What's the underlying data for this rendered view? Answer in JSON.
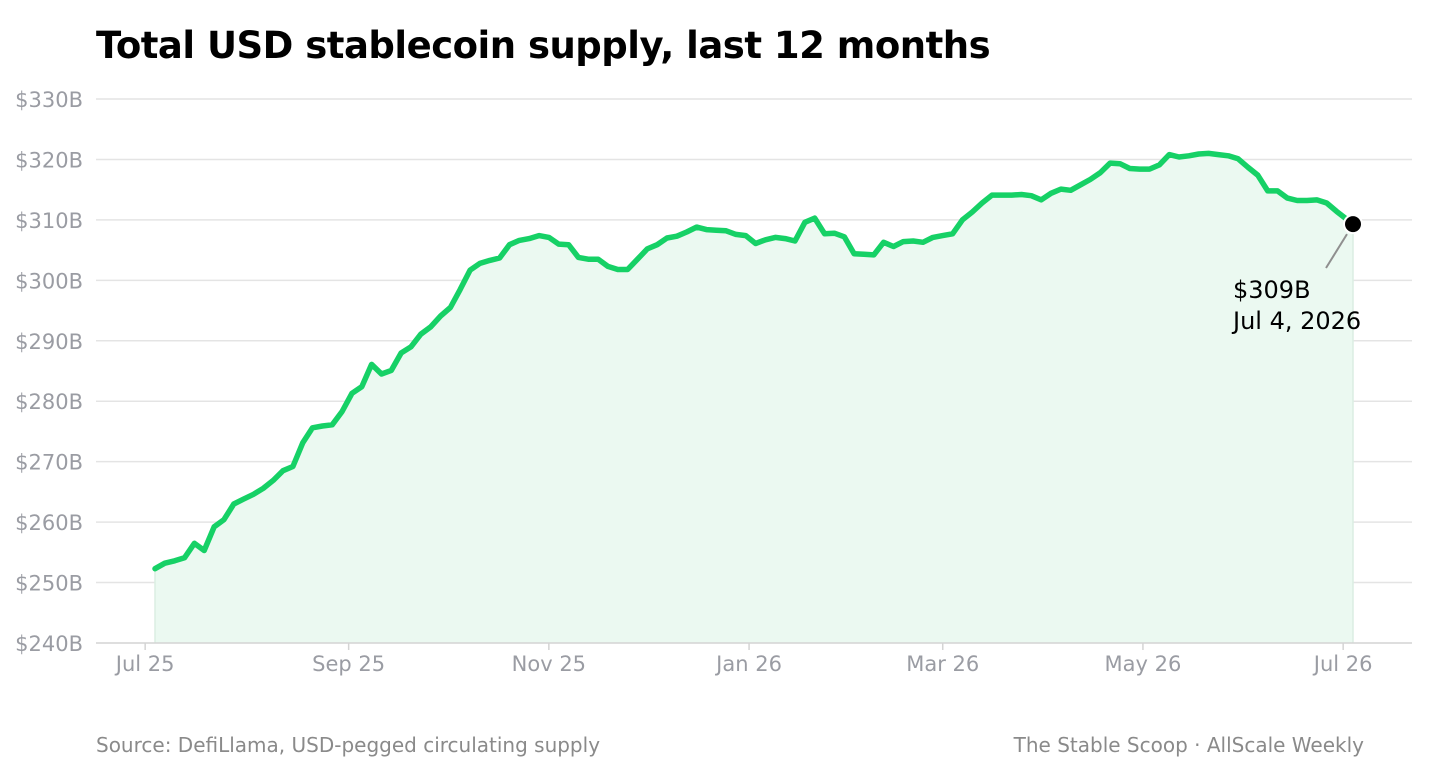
{
  "header": {
    "title": "Total USD stablecoin supply, last 12 months"
  },
  "footer": {
    "source": "Source: DefiLlama, USD-pegged circulating supply",
    "credit": "The Stable Scoop · AllScale Weekly"
  },
  "colors": {
    "line": "#16d166",
    "fill": "#ebf9f1",
    "grid": "#e4e4e4",
    "tick_text": "#9a9ca3",
    "marker": "#000000"
  },
  "chart_data": {
    "type": "area",
    "title": "Total USD stablecoin supply, last 12 months",
    "xlabel": "",
    "ylabel": "",
    "unit": "USD billions",
    "ylim": [
      240,
      330
    ],
    "yticks": [
      240,
      250,
      260,
      270,
      280,
      290,
      300,
      310,
      320,
      330
    ],
    "ytick_labels": [
      "$240B",
      "$250B",
      "$260B",
      "$270B",
      "$280B",
      "$290B",
      "$300B",
      "$310B",
      "$320B",
      "$330B"
    ],
    "xlim": [
      "2025-07-04",
      "2026-07-04"
    ],
    "xticks": [
      "2025-07-01",
      "2025-09-01",
      "2025-11-01",
      "2026-01-01",
      "2026-03-01",
      "2026-05-01",
      "2026-07-01"
    ],
    "xtick_labels": [
      "Jul 25",
      "Sep 25",
      "Nov 25",
      "Jan 26",
      "Mar 26",
      "May 26",
      "Jul 26"
    ],
    "grid": true,
    "series": [
      {
        "x": [
          "2025-07-04",
          "2025-07-07",
          "2025-07-10",
          "2025-07-13",
          "2025-07-16",
          "2025-07-19",
          "2025-07-22",
          "2025-07-25",
          "2025-07-28",
          "2025-07-31",
          "2025-08-03",
          "2025-08-06",
          "2025-08-09",
          "2025-08-12",
          "2025-08-15",
          "2025-08-18",
          "2025-08-21",
          "2025-08-24",
          "2025-08-27",
          "2025-08-30",
          "2025-09-02",
          "2025-09-05",
          "2025-09-08",
          "2025-09-11",
          "2025-09-14",
          "2025-09-17",
          "2025-09-20",
          "2025-09-23",
          "2025-09-26",
          "2025-09-29",
          "2025-10-02",
          "2025-10-05",
          "2025-10-08",
          "2025-10-11",
          "2025-10-14",
          "2025-10-17",
          "2025-10-20",
          "2025-10-23",
          "2025-10-26",
          "2025-10-29",
          "2025-11-01",
          "2025-11-04",
          "2025-11-07",
          "2025-11-10",
          "2025-11-13",
          "2025-11-16",
          "2025-11-19",
          "2025-11-22",
          "2025-11-25",
          "2025-11-28",
          "2025-12-01",
          "2025-12-04",
          "2025-12-07",
          "2025-12-10",
          "2025-12-13",
          "2025-12-16",
          "2025-12-19",
          "2025-12-22",
          "2025-12-25",
          "2025-12-28",
          "2025-12-31",
          "2026-01-03",
          "2026-01-06",
          "2026-01-09",
          "2026-01-12",
          "2026-01-15",
          "2026-01-18",
          "2026-01-21",
          "2026-01-24",
          "2026-01-27",
          "2026-01-30",
          "2026-02-02",
          "2026-02-05",
          "2026-02-08",
          "2026-02-11",
          "2026-02-14",
          "2026-02-17",
          "2026-02-20",
          "2026-02-23",
          "2026-02-26",
          "2026-03-01",
          "2026-03-04",
          "2026-03-07",
          "2026-03-10",
          "2026-03-13",
          "2026-03-16",
          "2026-03-19",
          "2026-03-22",
          "2026-03-25",
          "2026-03-28",
          "2026-03-31",
          "2026-04-03",
          "2026-04-06",
          "2026-04-09",
          "2026-04-12",
          "2026-04-15",
          "2026-04-18",
          "2026-04-21",
          "2026-04-24",
          "2026-04-27",
          "2026-04-30",
          "2026-05-03",
          "2026-05-06",
          "2026-05-09",
          "2026-05-12",
          "2026-05-15",
          "2026-05-18",
          "2026-05-21",
          "2026-05-24",
          "2026-05-27",
          "2026-05-30",
          "2026-06-02",
          "2026-06-05",
          "2026-06-08",
          "2026-06-11",
          "2026-06-14",
          "2026-06-17",
          "2026-06-20",
          "2026-06-23",
          "2026-06-26",
          "2026-06-29",
          "2026-07-04"
        ],
        "values": [
          252.3,
          253.2,
          253.6,
          254.1,
          256.5,
          255.3,
          259.2,
          260.4,
          263.0,
          263.8,
          264.6,
          265.6,
          266.9,
          268.5,
          269.2,
          273.1,
          275.6,
          275.9,
          276.1,
          278.3,
          281.3,
          282.4,
          286.1,
          284.5,
          285.1,
          288.0,
          289.0,
          291.1,
          292.3,
          294.1,
          295.5,
          298.5,
          301.7,
          302.8,
          303.3,
          303.7,
          305.9,
          306.6,
          306.9,
          307.4,
          307.1,
          306.0,
          305.9,
          303.8,
          303.5,
          303.5,
          302.3,
          301.8,
          301.8,
          303.5,
          305.2,
          305.9,
          307.0,
          307.3,
          308.0,
          308.8,
          308.4,
          308.3,
          308.2,
          307.6,
          307.4,
          306.1,
          306.7,
          307.1,
          306.9,
          306.5,
          309.6,
          310.3,
          307.7,
          307.8,
          307.2,
          304.4,
          304.3,
          304.2,
          306.3,
          305.6,
          306.4,
          306.5,
          306.3,
          307.1,
          307.4,
          307.7,
          310.0,
          311.3,
          312.8,
          314.1,
          314.1,
          314.1,
          314.2,
          314.0,
          313.3,
          314.4,
          315.1,
          314.9,
          315.8,
          316.7,
          317.8,
          319.4,
          319.3,
          318.5,
          318.4,
          318.4,
          319.1,
          320.8,
          320.4,
          320.6,
          320.9,
          321.0,
          320.8,
          320.6,
          320.1,
          318.7,
          317.4,
          314.8,
          314.8,
          313.6,
          313.2,
          313.2,
          313.3,
          312.8,
          311.4,
          309.3
        ]
      }
    ],
    "annotation": {
      "value_label": "$309B",
      "date_label": "Jul 4, 2026",
      "x": "2026-07-04",
      "y": 309.3
    }
  }
}
